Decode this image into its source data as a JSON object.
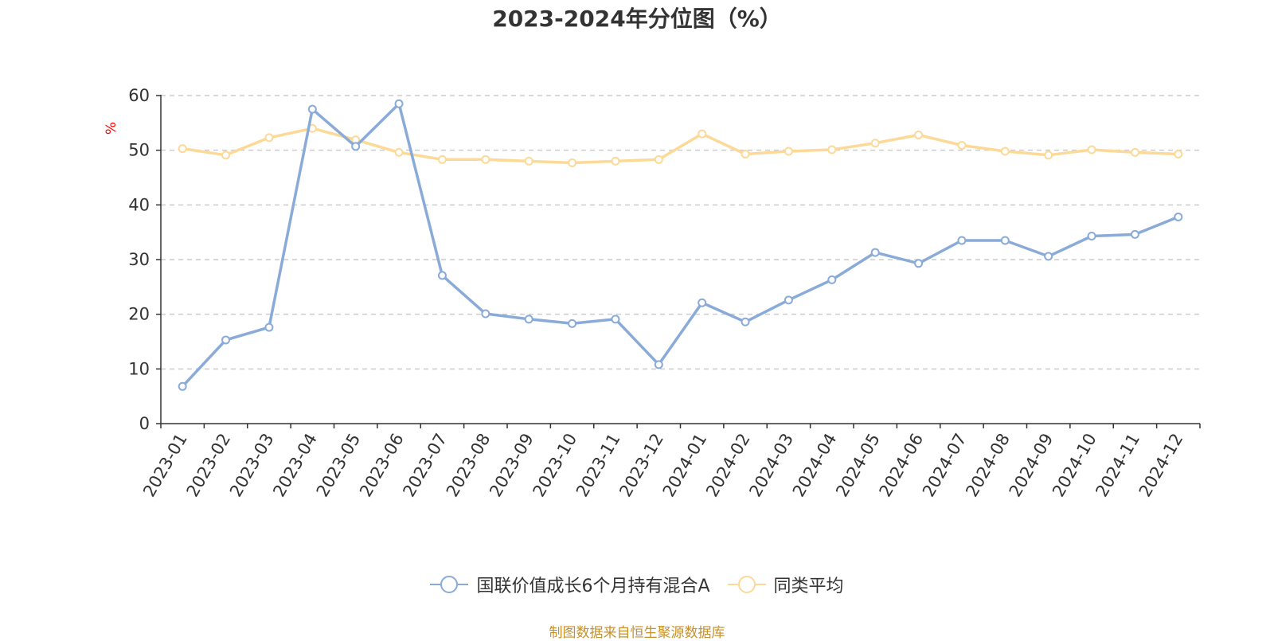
{
  "chart_data": {
    "type": "line",
    "title": "2023-2024年分位图（%）",
    "ylabel": "%",
    "xlabel": "",
    "ylim": [
      0,
      60
    ],
    "yticks": [
      0,
      10,
      20,
      30,
      40,
      50,
      60
    ],
    "categories": [
      "2023-01",
      "2023-02",
      "2023-03",
      "2023-04",
      "2023-05",
      "2023-06",
      "2023-07",
      "2023-08",
      "2023-09",
      "2023-10",
      "2023-11",
      "2023-12",
      "2024-01",
      "2024-02",
      "2024-03",
      "2024-04",
      "2024-05",
      "2024-06",
      "2024-07",
      "2024-08",
      "2024-09",
      "2024-10",
      "2024-11",
      "2024-12"
    ],
    "series": [
      {
        "name": "国联价值成长6个月持有混合A",
        "color": "#8aaad8",
        "values": [
          6.8,
          15.3,
          17.6,
          57.5,
          50.7,
          58.5,
          27.1,
          20.1,
          19.1,
          18.3,
          19.1,
          10.8,
          22.1,
          18.6,
          22.6,
          26.3,
          31.3,
          29.3,
          33.5,
          33.5,
          30.6,
          34.3,
          34.6,
          37.8
        ]
      },
      {
        "name": "同类平均",
        "color": "#fdd998",
        "values": [
          50.3,
          49.1,
          52.3,
          54.0,
          51.9,
          49.6,
          48.3,
          48.3,
          48.0,
          47.7,
          48.0,
          48.3,
          53.0,
          49.3,
          49.8,
          50.1,
          51.3,
          52.8,
          50.9,
          49.8,
          49.1,
          50.1,
          49.6,
          49.3
        ]
      }
    ],
    "grid": true,
    "legend": "bottom-center"
  },
  "source_note": "制图数据来自恒生聚源数据库"
}
